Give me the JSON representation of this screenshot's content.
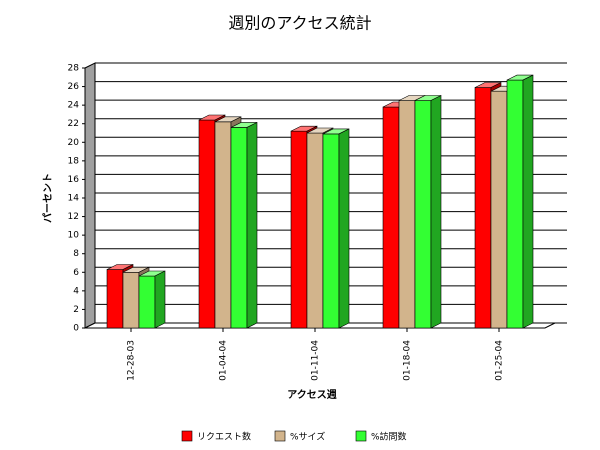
{
  "chart_data": {
    "type": "bar",
    "title": "週別のアクセス統計",
    "x_label": "アクセス週",
    "y_label": "パーセント",
    "categories": [
      "12-28-03",
      "01-04-04",
      "01-11-04",
      "01-18-04",
      "01-25-04"
    ],
    "series": [
      {
        "name": "リクエスト数",
        "color": "#ff0000",
        "values": [
          6.3,
          22.4,
          21.2,
          23.8,
          25.9
        ]
      },
      {
        "name": "%サイズ",
        "color": "#d2b48c",
        "values": [
          6.0,
          22.2,
          21.0,
          24.5,
          25.5
        ]
      },
      {
        "name": "%訪問数",
        "color": "#33ff33",
        "values": [
          5.6,
          21.6,
          20.9,
          24.5,
          26.7
        ]
      }
    ],
    "ylim": [
      0,
      28
    ],
    "yticks": [
      0,
      2,
      4,
      6,
      8,
      10,
      12,
      14,
      16,
      18,
      20,
      22,
      24,
      26,
      28
    ],
    "grid": true
  }
}
